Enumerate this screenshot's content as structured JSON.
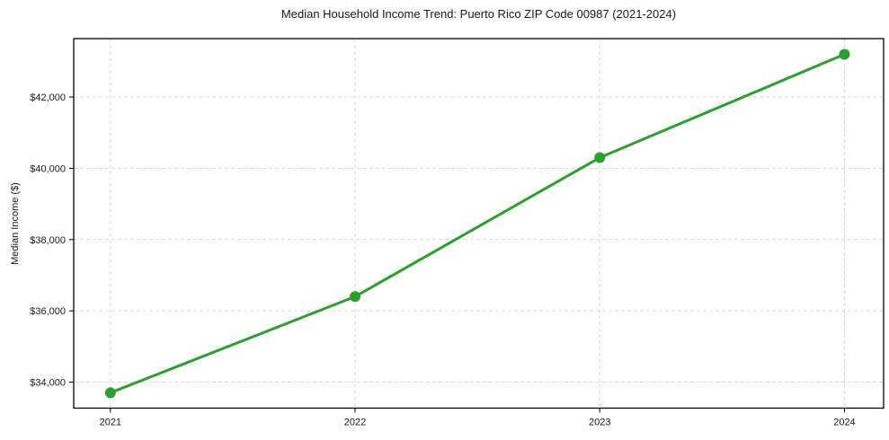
{
  "title": "Median Household Income Trend: Puerto Rico ZIP Code 00987 (2021-2024)",
  "colors": {
    "line": "#2ca02c",
    "marker": "#2ca02c",
    "grid": "#d9d9d9",
    "border": "#000000",
    "text": "#1a1a1a",
    "background": "#ffffff"
  },
  "chart_data": {
    "type": "line",
    "title": "Median Household Income Trend: Puerto Rico ZIP Code 00987 (2021-2024)",
    "series_name": "Median Household Income",
    "x": [
      2021,
      2022,
      2023,
      2024
    ],
    "values": [
      33700,
      36400,
      40300,
      43200
    ],
    "xlabel": "",
    "ylabel": "Median Income ($)",
    "x_ticks": [
      2021,
      2022,
      2023,
      2024
    ],
    "x_tick_labels": [
      "2021",
      "2022",
      "2023",
      "2024"
    ],
    "y_ticks": [
      34000,
      36000,
      38000,
      40000,
      42000
    ],
    "y_tick_labels": [
      "$34,000",
      "$36,000",
      "$38,000",
      "$40,000",
      "$42,000"
    ],
    "xlim": [
      2020.85,
      2024.16
    ],
    "ylim": [
      33270,
      43640
    ],
    "grid": true,
    "grid_style": "dashed",
    "legend": false,
    "marker": "circle",
    "line_width": 3,
    "marker_radius": 6
  }
}
